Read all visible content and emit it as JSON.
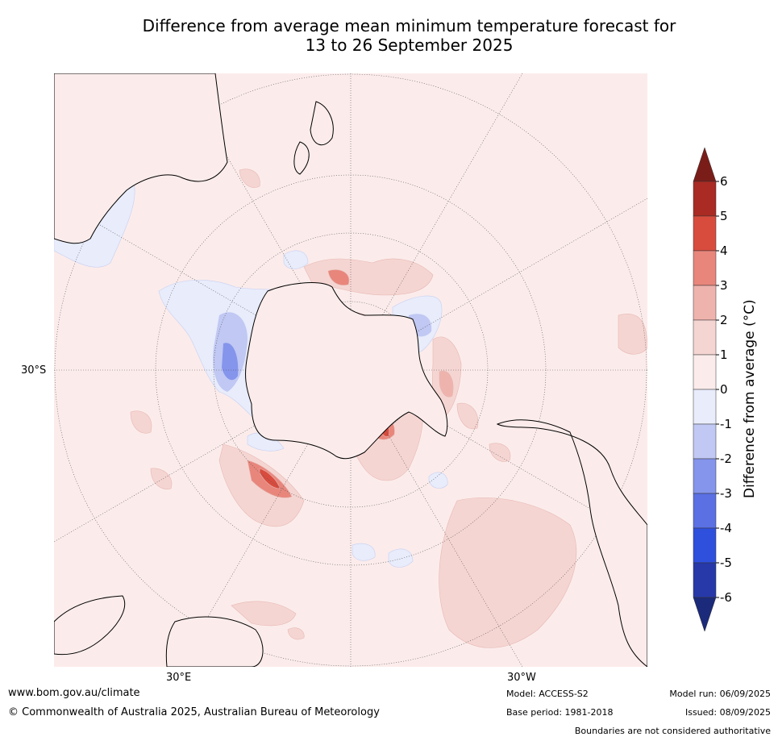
{
  "title": {
    "line1": "Difference from average mean minimum temperature forecast for",
    "line2": "13 to 26 September 2025"
  },
  "map": {
    "projection": "south-polar-stereographic",
    "land_outline_color": "#000000",
    "ocean_base_color": "#fbeceb",
    "graticule_labels": {
      "left_lat": "30°S",
      "bottom_left_lon": "30°E",
      "bottom_right_lon": "30°W"
    }
  },
  "colorbar": {
    "label": "Difference from average (°C)",
    "ticks": [
      "6",
      "5",
      "4",
      "3",
      "2",
      "1",
      "0",
      "-1",
      "-2",
      "-3",
      "-4",
      "-5",
      "-6"
    ],
    "levels": [
      {
        "range": "6+",
        "color": "#7a1d18"
      },
      {
        "range": "5 to 6",
        "color": "#a92b23"
      },
      {
        "range": "4 to 5",
        "color": "#d84c3e"
      },
      {
        "range": "3 to 4",
        "color": "#e8867c"
      },
      {
        "range": "2 to 3",
        "color": "#efb3ad"
      },
      {
        "range": "1 to 2",
        "color": "#f5d5d2"
      },
      {
        "range": "0 to 1",
        "color": "#fbeceb"
      },
      {
        "range": "-1 to 0",
        "color": "#e8ecfb"
      },
      {
        "range": "-2 to -1",
        "color": "#c0c8f3"
      },
      {
        "range": "-3 to -2",
        "color": "#8595ec"
      },
      {
        "range": "-4 to -3",
        "color": "#5a70e3"
      },
      {
        "range": "-5 to -4",
        "color": "#2f50dd"
      },
      {
        "range": "-6 to -5",
        "color": "#2739a8"
      },
      {
        "range": "-6-",
        "color": "#1b2a7a"
      }
    ]
  },
  "footer": {
    "website": "www.bom.gov.au/climate",
    "copyright": "© Commonwealth of Australia 2025, Australian Bureau of Meteorology",
    "model": "Model: ACCESS-S2",
    "base_period": "Base period: 1981-2018",
    "model_run": "Model run: 06/09/2025",
    "issued": "Issued: 08/09/2025",
    "disclaimer": "Boundaries are not considered authoritative"
  }
}
